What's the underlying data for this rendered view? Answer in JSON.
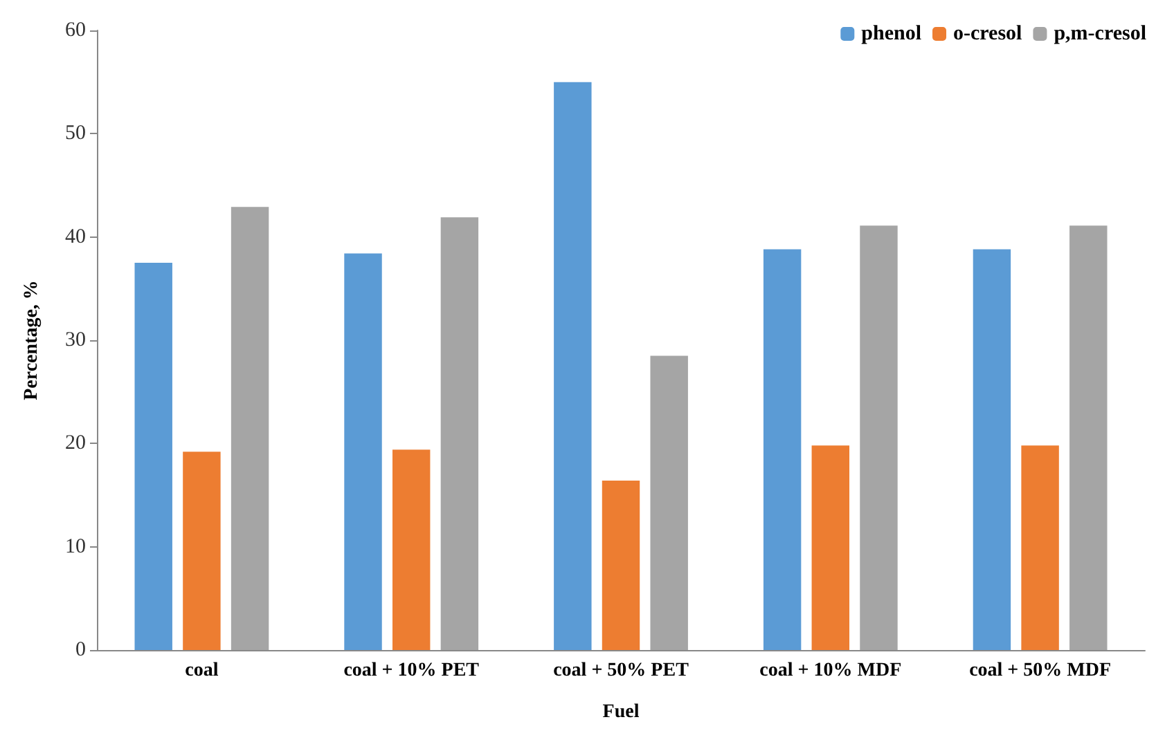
{
  "chart_data": {
    "type": "bar",
    "xlabel": "Fuel",
    "ylabel": "Percentage, %",
    "categories": [
      "coal",
      "coal + 10% PET",
      "coal + 50% PET",
      "coal + 10% MDF",
      "coal + 50% MDF"
    ],
    "series": [
      {
        "name": "phenol",
        "color": "#5b9bd5",
        "values": [
          37.5,
          38.4,
          55.0,
          38.8,
          38.8
        ]
      },
      {
        "name": "o-cresol",
        "color": "#ed7d31",
        "values": [
          19.2,
          19.4,
          16.4,
          19.8,
          19.8
        ]
      },
      {
        "name": "p,m-cresol",
        "color": "#a5a5a5",
        "values": [
          42.9,
          41.9,
          28.5,
          41.1,
          41.1
        ]
      }
    ],
    "ylim": [
      0,
      60
    ],
    "yticks": [
      0,
      10,
      20,
      30,
      40,
      50,
      60
    ],
    "grid": false,
    "legend": "top right"
  }
}
